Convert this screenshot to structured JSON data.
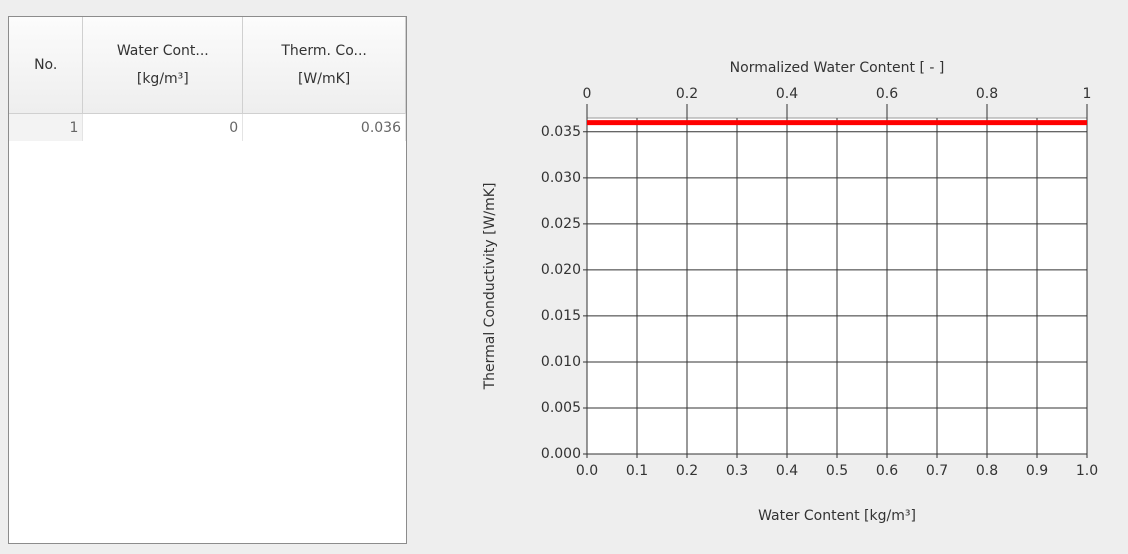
{
  "table": {
    "columns": [
      [
        "No."
      ],
      [
        "Water Cont...",
        "[kg/m³]"
      ],
      [
        "Therm. Co...",
        "[W/mK]"
      ]
    ],
    "rows": [
      [
        1,
        0,
        0.036
      ]
    ]
  },
  "chart_data": {
    "type": "line",
    "xlabel": "Water Content [kg/m³]",
    "x2label": "Normalized Water Content [ - ]",
    "ylabel": "Thermal Conductivity [W/mK]",
    "x": [
      0,
      1
    ],
    "series": [
      {
        "color": "#ff0000",
        "values": [
          0.036,
          0.036
        ]
      }
    ],
    "xlim": [
      0,
      1
    ],
    "xticks": [
      {
        "value": 0,
        "label": "0.0"
      },
      0.1,
      0.2,
      0.3,
      0.4,
      0.5,
      0.6,
      0.7,
      0.8,
      0.9,
      {
        "value": 1,
        "label": "1.0"
      }
    ],
    "x2lim": [
      0,
      1
    ],
    "x2ticks": [
      0,
      0.2,
      0.4,
      0.6,
      0.8,
      1
    ],
    "ylim": [
      0,
      0.0365
    ],
    "yticks": [
      {
        "value": 0,
        "label": "0.000"
      },
      {
        "value": 0.005,
        "label": "0.005"
      },
      {
        "value": 0.01,
        "label": "0.010"
      },
      {
        "value": 0.015,
        "label": "0.015"
      },
      {
        "value": 0.02,
        "label": "0.020"
      },
      {
        "value": 0.025,
        "label": "0.025"
      },
      {
        "value": 0.03,
        "label": "0.030"
      },
      {
        "value": 0.035,
        "label": "0.035"
      }
    ],
    "grid": true
  }
}
